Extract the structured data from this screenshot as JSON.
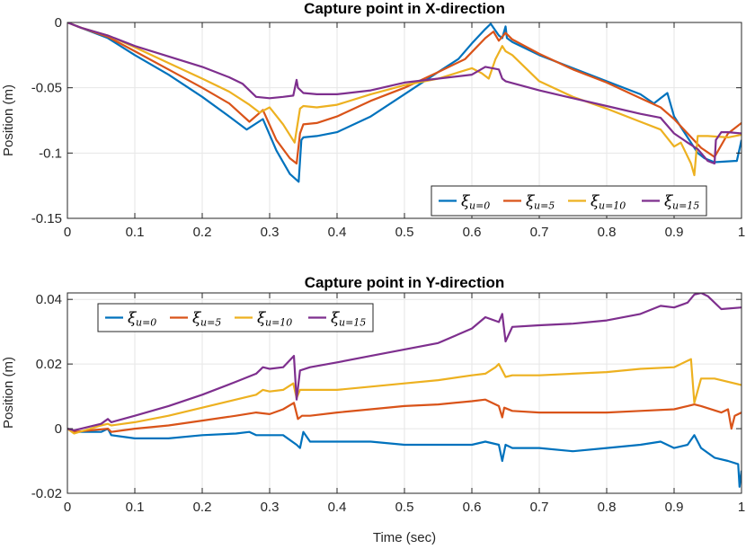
{
  "chart_data": [
    {
      "type": "line",
      "title": "Capture point in X-direction",
      "xlabel": "",
      "ylabel": "Position (m)",
      "xlim": [
        0,
        1
      ],
      "ylim": [
        -0.15,
        0
      ],
      "xticks": [
        0,
        0.1,
        0.2,
        0.3,
        0.4,
        0.5,
        0.6,
        0.7,
        0.8,
        0.9,
        1
      ],
      "xtick_labels": [
        "0",
        "0.1",
        "0.2",
        "0.3",
        "0.4",
        "0.5",
        "0.6",
        "0.7",
        "0.8",
        "0.9",
        "1"
      ],
      "yticks": [
        0,
        -0.05,
        -0.1,
        -0.15
      ],
      "ytick_labels": [
        "0",
        "-0.05",
        "-0.1",
        "-0.15"
      ],
      "grid": true,
      "legend_position": "bottom-right",
      "series": [
        {
          "name": "ξ u=0",
          "symbol": "ξ",
          "subscript": "u=0",
          "color": "#0072BD",
          "x": [
            0,
            0.02,
            0.06,
            0.1,
            0.15,
            0.2,
            0.24,
            0.266,
            0.29,
            0.31,
            0.33,
            0.343,
            0.347,
            0.35,
            0.37,
            0.4,
            0.45,
            0.5,
            0.55,
            0.58,
            0.6,
            0.62,
            0.628,
            0.64,
            0.645,
            0.65,
            0.652,
            0.66,
            0.7,
            0.75,
            0.8,
            0.85,
            0.87,
            0.88,
            0.89,
            0.9,
            0.92,
            0.935,
            0.945,
            0.96,
            0.99,
            0.993,
            1
          ],
          "y": [
            0,
            -0.004,
            -0.012,
            -0.025,
            -0.04,
            -0.057,
            -0.072,
            -0.082,
            -0.074,
            -0.098,
            -0.116,
            -0.122,
            -0.09,
            -0.088,
            -0.087,
            -0.084,
            -0.072,
            -0.055,
            -0.038,
            -0.028,
            -0.016,
            -0.005,
            -0.001,
            -0.01,
            -0.012,
            -0.003,
            -0.012,
            -0.015,
            -0.025,
            -0.035,
            -0.045,
            -0.055,
            -0.062,
            -0.058,
            -0.054,
            -0.072,
            -0.088,
            -0.1,
            -0.104,
            -0.107,
            -0.106,
            -0.106,
            -0.09
          ]
        },
        {
          "name": "ξ u=5",
          "symbol": "ξ",
          "subscript": "u=5",
          "color": "#D95319",
          "x": [
            0,
            0.02,
            0.06,
            0.1,
            0.15,
            0.2,
            0.24,
            0.27,
            0.29,
            0.31,
            0.33,
            0.34,
            0.345,
            0.35,
            0.37,
            0.4,
            0.45,
            0.5,
            0.55,
            0.59,
            0.62,
            0.632,
            0.64,
            0.65,
            0.66,
            0.7,
            0.75,
            0.8,
            0.85,
            0.88,
            0.9,
            0.92,
            0.94,
            0.96,
            0.98,
            1
          ],
          "y": [
            0,
            -0.004,
            -0.011,
            -0.022,
            -0.036,
            -0.05,
            -0.062,
            -0.076,
            -0.067,
            -0.09,
            -0.104,
            -0.108,
            -0.085,
            -0.078,
            -0.077,
            -0.072,
            -0.06,
            -0.05,
            -0.038,
            -0.028,
            -0.012,
            -0.007,
            -0.014,
            -0.008,
            -0.013,
            -0.024,
            -0.036,
            -0.046,
            -0.058,
            -0.065,
            -0.074,
            -0.085,
            -0.096,
            -0.103,
            -0.085,
            -0.077
          ]
        },
        {
          "name": "ξ u=10",
          "symbol": "ξ",
          "subscript": "u=10",
          "color": "#EDB120",
          "x": [
            0,
            0.02,
            0.06,
            0.1,
            0.15,
            0.2,
            0.24,
            0.27,
            0.285,
            0.3,
            0.32,
            0.337,
            0.345,
            0.35,
            0.37,
            0.4,
            0.45,
            0.5,
            0.55,
            0.6,
            0.615,
            0.625,
            0.635,
            0.645,
            0.65,
            0.66,
            0.7,
            0.75,
            0.8,
            0.85,
            0.88,
            0.9,
            0.91,
            0.925,
            0.93,
            0.935,
            0.95,
            0.98,
            1
          ],
          "y": [
            0,
            -0.004,
            -0.01,
            -0.019,
            -0.031,
            -0.043,
            -0.053,
            -0.063,
            -0.069,
            -0.065,
            -0.078,
            -0.092,
            -0.066,
            -0.064,
            -0.065,
            -0.063,
            -0.055,
            -0.048,
            -0.043,
            -0.035,
            -0.039,
            -0.043,
            -0.028,
            -0.018,
            -0.022,
            -0.025,
            -0.045,
            -0.057,
            -0.066,
            -0.076,
            -0.082,
            -0.095,
            -0.092,
            -0.108,
            -0.117,
            -0.087,
            -0.087,
            -0.088,
            -0.086
          ]
        },
        {
          "name": "ξ u=15",
          "symbol": "ξ",
          "subscript": "u=15",
          "color": "#7E2F8E",
          "x": [
            0,
            0.02,
            0.06,
            0.1,
            0.15,
            0.2,
            0.24,
            0.26,
            0.27,
            0.28,
            0.3,
            0.32,
            0.335,
            0.34,
            0.342,
            0.35,
            0.37,
            0.4,
            0.45,
            0.5,
            0.55,
            0.6,
            0.62,
            0.64,
            0.645,
            0.65,
            0.7,
            0.75,
            0.8,
            0.85,
            0.88,
            0.9,
            0.92,
            0.935,
            0.95,
            0.96,
            0.962,
            0.97,
            0.98,
            1
          ],
          "y": [
            0,
            -0.004,
            -0.01,
            -0.018,
            -0.026,
            -0.034,
            -0.042,
            -0.047,
            -0.052,
            -0.057,
            -0.058,
            -0.057,
            -0.056,
            -0.044,
            -0.05,
            -0.054,
            -0.055,
            -0.055,
            -0.052,
            -0.046,
            -0.043,
            -0.04,
            -0.034,
            -0.036,
            -0.043,
            -0.045,
            -0.052,
            -0.058,
            -0.064,
            -0.07,
            -0.073,
            -0.085,
            -0.092,
            -0.097,
            -0.106,
            -0.108,
            -0.09,
            -0.084,
            -0.084,
            -0.085
          ]
        }
      ]
    },
    {
      "type": "line",
      "title": "Capture point in Y-direction",
      "xlabel": "Time (sec)",
      "ylabel": "Position (m)",
      "xlim": [
        0,
        1
      ],
      "ylim": [
        -0.02,
        0.042
      ],
      "xticks": [
        0,
        0.1,
        0.2,
        0.3,
        0.4,
        0.5,
        0.6,
        0.7,
        0.8,
        0.9,
        1
      ],
      "xtick_labels": [
        "0",
        "0.1",
        "0.2",
        "0.3",
        "0.4",
        "0.5",
        "0.6",
        "0.7",
        "0.8",
        "0.9",
        "1"
      ],
      "yticks": [
        0.04,
        0.02,
        0,
        -0.02
      ],
      "ytick_labels": [
        "0.04",
        "0.02",
        "0",
        "-0.02"
      ],
      "grid": true,
      "legend_position": "top-left",
      "series": [
        {
          "name": "ξ u=0",
          "symbol": "ξ",
          "subscript": "u=0",
          "color": "#0072BD",
          "x": [
            0,
            0.01,
            0.05,
            0.06,
            0.065,
            0.1,
            0.15,
            0.2,
            0.25,
            0.27,
            0.28,
            0.3,
            0.32,
            0.34,
            0.345,
            0.35,
            0.36,
            0.4,
            0.45,
            0.5,
            0.55,
            0.6,
            0.62,
            0.64,
            0.645,
            0.65,
            0.66,
            0.7,
            0.75,
            0.8,
            0.85,
            0.88,
            0.9,
            0.92,
            0.93,
            0.94,
            0.96,
            0.98,
            0.995,
            0.997,
            1
          ],
          "y": [
            0,
            -0.001,
            -0.001,
            0,
            -0.002,
            -0.003,
            -0.003,
            -0.002,
            -0.0015,
            -0.001,
            -0.002,
            -0.002,
            -0.002,
            -0.005,
            -0.006,
            -0.001,
            -0.004,
            -0.004,
            -0.004,
            -0.005,
            -0.005,
            -0.005,
            -0.004,
            -0.005,
            -0.01,
            -0.005,
            -0.006,
            -0.006,
            -0.007,
            -0.006,
            -0.005,
            -0.004,
            -0.006,
            -0.005,
            -0.002,
            -0.006,
            -0.009,
            -0.01,
            -0.011,
            -0.018,
            -0.013
          ]
        },
        {
          "name": "ξ u=5",
          "symbol": "ξ",
          "subscript": "u=5",
          "color": "#D95319",
          "x": [
            0,
            0.01,
            0.06,
            0.065,
            0.1,
            0.15,
            0.2,
            0.25,
            0.28,
            0.3,
            0.32,
            0.336,
            0.342,
            0.348,
            0.36,
            0.4,
            0.45,
            0.5,
            0.55,
            0.6,
            0.62,
            0.64,
            0.645,
            0.648,
            0.66,
            0.7,
            0.75,
            0.8,
            0.85,
            0.9,
            0.92,
            0.93,
            0.94,
            0.97,
            0.98,
            0.985,
            0.99,
            1
          ],
          "y": [
            0,
            -0.001,
            0,
            -0.001,
            0,
            0.001,
            0.0025,
            0.004,
            0.005,
            0.0045,
            0.006,
            0.008,
            0.003,
            0.004,
            0.004,
            0.005,
            0.006,
            0.007,
            0.0075,
            0.0085,
            0.009,
            0.007,
            0.0035,
            0.0065,
            0.0055,
            0.005,
            0.005,
            0.005,
            0.0055,
            0.006,
            0.007,
            0.0075,
            0.007,
            0.005,
            0.006,
            0,
            0.004,
            0.005
          ]
        },
        {
          "name": "ξ u=10",
          "symbol": "ξ",
          "subscript": "u=10",
          "color": "#EDB120",
          "x": [
            0,
            0.01,
            0.05,
            0.06,
            0.065,
            0.1,
            0.15,
            0.2,
            0.25,
            0.28,
            0.29,
            0.3,
            0.32,
            0.335,
            0.34,
            0.345,
            0.36,
            0.4,
            0.45,
            0.5,
            0.55,
            0.6,
            0.62,
            0.635,
            0.64,
            0.645,
            0.65,
            0.66,
            0.7,
            0.75,
            0.8,
            0.85,
            0.9,
            0.92,
            0.925,
            0.93,
            0.94,
            0.96,
            1
          ],
          "y": [
            0,
            -0.0015,
            0.001,
            0.0015,
            0.001,
            0.002,
            0.004,
            0.0065,
            0.009,
            0.0105,
            0.012,
            0.0115,
            0.012,
            0.014,
            0.0095,
            0.012,
            0.012,
            0.012,
            0.013,
            0.014,
            0.015,
            0.0165,
            0.017,
            0.019,
            0.02,
            0.018,
            0.016,
            0.0165,
            0.0165,
            0.017,
            0.0175,
            0.0185,
            0.019,
            0.021,
            0.0215,
            0.008,
            0.0155,
            0.0155,
            0.0135
          ]
        },
        {
          "name": "ξ u=15",
          "symbol": "ξ",
          "subscript": "u=15",
          "color": "#7E2F8E",
          "x": [
            0,
            0.01,
            0.05,
            0.06,
            0.065,
            0.1,
            0.15,
            0.2,
            0.25,
            0.28,
            0.29,
            0.3,
            0.32,
            0.336,
            0.34,
            0.345,
            0.36,
            0.4,
            0.45,
            0.5,
            0.55,
            0.6,
            0.62,
            0.64,
            0.645,
            0.65,
            0.66,
            0.7,
            0.75,
            0.8,
            0.85,
            0.88,
            0.9,
            0.92,
            0.93,
            0.94,
            0.95,
            0.97,
            1
          ],
          "y": [
            0,
            -0.0005,
            0.0015,
            0.003,
            0.002,
            0.004,
            0.007,
            0.0105,
            0.0145,
            0.017,
            0.019,
            0.0185,
            0.019,
            0.0225,
            0.009,
            0.018,
            0.019,
            0.0205,
            0.0225,
            0.0245,
            0.0265,
            0.031,
            0.0345,
            0.033,
            0.0355,
            0.027,
            0.0315,
            0.032,
            0.0325,
            0.0335,
            0.0355,
            0.038,
            0.0375,
            0.039,
            0.0415,
            0.042,
            0.041,
            0.037,
            0.0375
          ]
        }
      ]
    }
  ]
}
